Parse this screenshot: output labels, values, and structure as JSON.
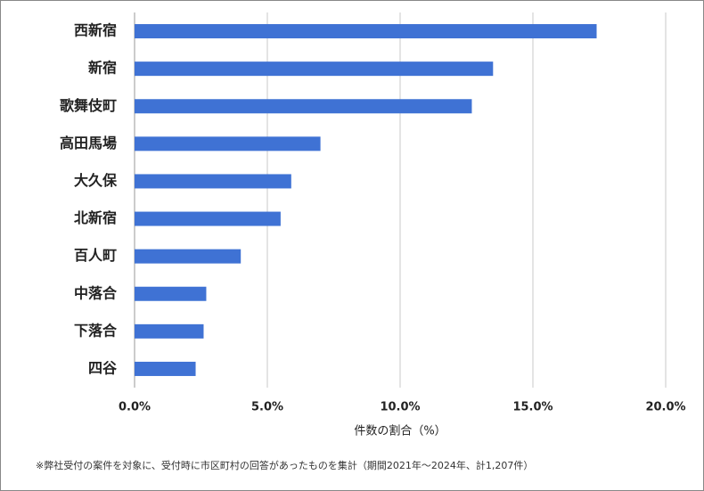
{
  "chart_data": {
    "type": "hbar",
    "categories": [
      "西新宿",
      "新宿",
      "歌舞伎町",
      "高田馬場",
      "大久保",
      "北新宿",
      "百人町",
      "中落合",
      "下落合",
      "四谷"
    ],
    "values": [
      17.4,
      13.5,
      12.7,
      7.0,
      5.9,
      5.5,
      4.0,
      2.7,
      2.6,
      2.3
    ],
    "color": "#3f72d4",
    "xlim": [
      0,
      20
    ],
    "xticks": [
      {
        "value": 0,
        "label": "0.0%"
      },
      {
        "value": 5,
        "label": "5.0%"
      },
      {
        "value": 10,
        "label": "10.0%"
      },
      {
        "value": 15,
        "label": "15.0%"
      },
      {
        "value": 20,
        "label": "20.0%"
      }
    ],
    "x_label": "件数の割合（%）",
    "note": "※弊社受付の案件を対象に、受付時に市区町村の回答があったものを集計（期間2021年～2024年、計1,207件）",
    "grid": true
  }
}
